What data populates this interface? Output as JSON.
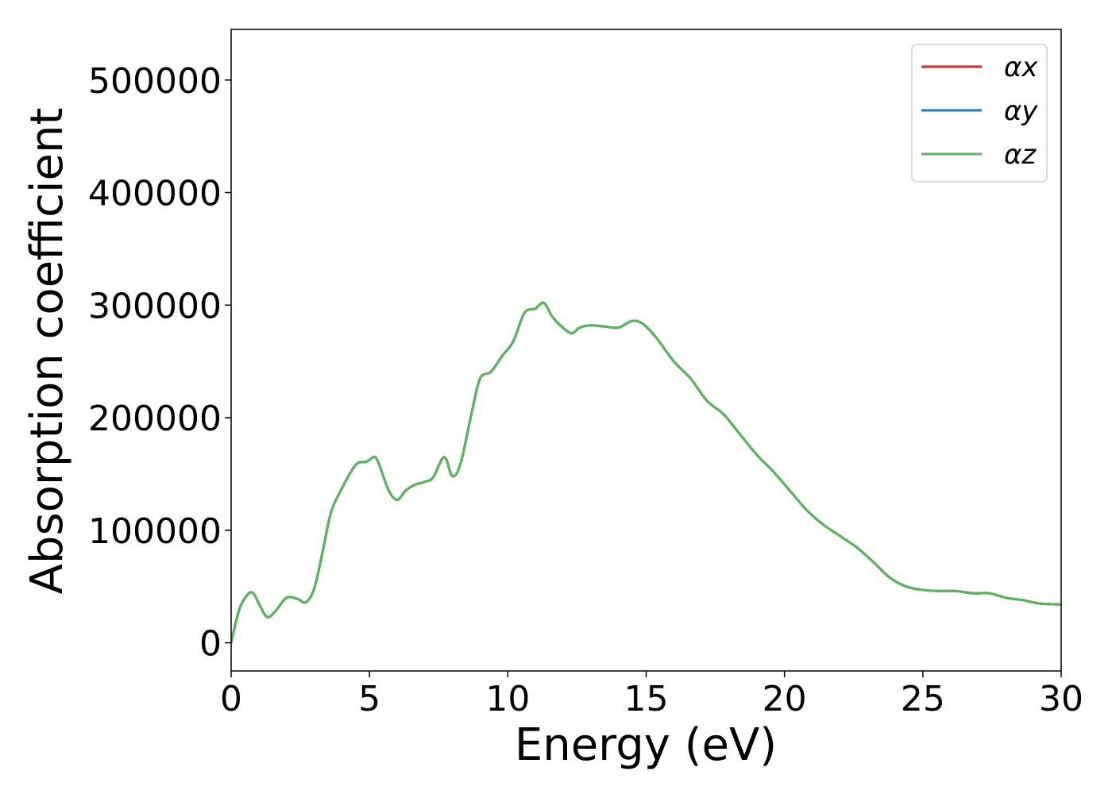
{
  "chart_data": {
    "type": "line",
    "xlabel": "Energy (eV)",
    "ylabel": "Absorption coefficient",
    "xlim": [
      0,
      30
    ],
    "ylim": [
      -25000,
      545000
    ],
    "xticks": [
      0,
      5,
      10,
      15,
      20,
      25,
      30
    ],
    "yticks": [
      0,
      100000,
      200000,
      300000,
      400000,
      500000
    ],
    "xtick_labels": [
      "0",
      "5",
      "10",
      "15",
      "20",
      "25",
      "30"
    ],
    "ytick_labels": [
      "0",
      "100000",
      "200000",
      "300000",
      "400000",
      "500000"
    ],
    "grid": false,
    "legend_position": "top-right",
    "series": [
      {
        "name": "αx",
        "color": "#d62728",
        "x": [
          0,
          0.3,
          0.6,
          0.8,
          1.0,
          1.3,
          1.6,
          2.0,
          2.4,
          2.7,
          3.0,
          3.3,
          3.6,
          4.0,
          4.5,
          4.9,
          5.2,
          5.4,
          5.7,
          6.0,
          6.3,
          6.6,
          7.0,
          7.3,
          7.7,
          8.0,
          8.3,
          8.7,
          9.0,
          9.4,
          9.8,
          10.2,
          10.6,
          11.0,
          11.3,
          11.6,
          11.9,
          12.3,
          12.6,
          13.0,
          13.5,
          14.0,
          14.5,
          14.9,
          15.4,
          16.0,
          16.6,
          17.2,
          17.8,
          18.4,
          19.0,
          19.6,
          20.2,
          20.8,
          21.4,
          22.0,
          22.6,
          23.2,
          23.8,
          24.4,
          25.0,
          25.6,
          26.2,
          26.8,
          27.4,
          28.0,
          28.6,
          29.2,
          30.0
        ],
        "values": [
          0,
          30000,
          43000,
          44000,
          35000,
          23000,
          28000,
          40000,
          39000,
          36000,
          48000,
          80000,
          115000,
          137000,
          158000,
          161000,
          165000,
          155000,
          135000,
          127000,
          135000,
          140000,
          143000,
          147000,
          165000,
          148000,
          160000,
          205000,
          235000,
          241000,
          255000,
          268000,
          293000,
          297000,
          302000,
          290000,
          282000,
          275000,
          280000,
          282000,
          281000,
          280000,
          286000,
          283000,
          270000,
          250000,
          235000,
          215000,
          203000,
          185000,
          167000,
          152000,
          135000,
          118000,
          105000,
          95000,
          85000,
          72000,
          58000,
          50000,
          47000,
          46000,
          46000,
          44000,
          44000,
          40000,
          38000,
          35000,
          34000
        ]
      },
      {
        "name": "αy",
        "color": "#1f77b4",
        "x": [
          0,
          0.3,
          0.6,
          0.8,
          1.0,
          1.3,
          1.6,
          2.0,
          2.4,
          2.7,
          3.0,
          3.3,
          3.6,
          4.0,
          4.5,
          4.9,
          5.2,
          5.4,
          5.7,
          6.0,
          6.3,
          6.6,
          7.0,
          7.3,
          7.7,
          8.0,
          8.3,
          8.7,
          9.0,
          9.4,
          9.8,
          10.2,
          10.6,
          11.0,
          11.3,
          11.6,
          11.9,
          12.3,
          12.6,
          13.0,
          13.5,
          14.0,
          14.5,
          14.9,
          15.4,
          16.0,
          16.6,
          17.2,
          17.8,
          18.4,
          19.0,
          19.6,
          20.2,
          20.8,
          21.4,
          22.0,
          22.6,
          23.2,
          23.8,
          24.4,
          25.0,
          25.6,
          26.2,
          26.8,
          27.4,
          28.0,
          28.6,
          29.2,
          30.0
        ],
        "values": [
          0,
          30000,
          43000,
          44000,
          35000,
          23000,
          28000,
          40000,
          39000,
          36000,
          48000,
          80000,
          115000,
          137000,
          158000,
          161000,
          165000,
          155000,
          135000,
          127000,
          135000,
          140000,
          143000,
          147000,
          165000,
          148000,
          160000,
          205000,
          235000,
          241000,
          255000,
          268000,
          293000,
          297000,
          302000,
          290000,
          282000,
          275000,
          280000,
          282000,
          281000,
          280000,
          286000,
          283000,
          270000,
          250000,
          235000,
          215000,
          203000,
          185000,
          167000,
          152000,
          135000,
          118000,
          105000,
          95000,
          85000,
          72000,
          58000,
          50000,
          47000,
          46000,
          46000,
          44000,
          44000,
          40000,
          38000,
          35000,
          34000
        ]
      },
      {
        "name": "αz",
        "color": "#5bb55b",
        "x": [
          0,
          0.3,
          0.6,
          0.8,
          1.0,
          1.3,
          1.6,
          2.0,
          2.4,
          2.7,
          3.0,
          3.3,
          3.6,
          4.0,
          4.5,
          4.9,
          5.2,
          5.4,
          5.7,
          6.0,
          6.3,
          6.6,
          7.0,
          7.3,
          7.7,
          8.0,
          8.3,
          8.7,
          9.0,
          9.4,
          9.8,
          10.2,
          10.6,
          11.0,
          11.3,
          11.6,
          11.9,
          12.3,
          12.6,
          13.0,
          13.5,
          14.0,
          14.5,
          14.9,
          15.4,
          16.0,
          16.6,
          17.2,
          17.8,
          18.4,
          19.0,
          19.6,
          20.2,
          20.8,
          21.4,
          22.0,
          22.6,
          23.2,
          23.8,
          24.4,
          25.0,
          25.6,
          26.2,
          26.8,
          27.4,
          28.0,
          28.6,
          29.2,
          30.0
        ],
        "values": [
          0,
          30000,
          43000,
          44000,
          35000,
          23000,
          28000,
          40000,
          39000,
          36000,
          48000,
          80000,
          115000,
          137000,
          158000,
          161000,
          165000,
          155000,
          135000,
          127000,
          135000,
          140000,
          143000,
          147000,
          165000,
          148000,
          160000,
          205000,
          235000,
          241000,
          255000,
          268000,
          293000,
          297000,
          302000,
          290000,
          282000,
          275000,
          280000,
          282000,
          281000,
          280000,
          286000,
          283000,
          270000,
          250000,
          235000,
          215000,
          203000,
          185000,
          167000,
          152000,
          135000,
          118000,
          105000,
          95000,
          85000,
          72000,
          58000,
          50000,
          47000,
          46000,
          46000,
          44000,
          44000,
          40000,
          38000,
          35000,
          34000
        ]
      }
    ]
  }
}
